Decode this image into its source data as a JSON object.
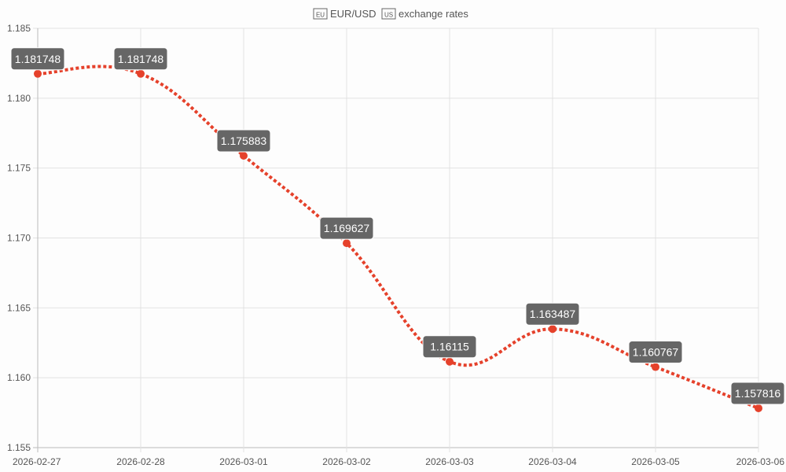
{
  "chart_data": {
    "type": "line",
    "title": "EUR/USD exchange rates",
    "title_parts": {
      "flag_left": "EU",
      "pair": "EUR/USD",
      "flag_right": "US",
      "suffix": "exchange rates"
    },
    "categories": [
      "2026-02-27",
      "2026-02-28",
      "2026-03-01",
      "2026-03-02",
      "2026-03-03",
      "2026-03-04",
      "2026-03-05",
      "2026-03-06"
    ],
    "values": [
      1.181748,
      1.181748,
      1.175883,
      1.169627,
      1.16115,
      1.163487,
      1.160767,
      1.157816
    ],
    "data_labels": [
      "1.181748",
      "1.181748",
      "1.175883",
      "1.169627",
      "1.16115",
      "1.163487",
      "1.160767",
      "1.157816"
    ],
    "y_ticks": [
      "1.155",
      "1.160",
      "1.165",
      "1.170",
      "1.175",
      "1.180",
      "1.185"
    ],
    "ylim": [
      1.155,
      1.185
    ],
    "grid": true,
    "legend": "none",
    "colors": {
      "line": "#e5412b",
      "label_bg": "#666666",
      "grid": "#e2e2e2"
    }
  }
}
